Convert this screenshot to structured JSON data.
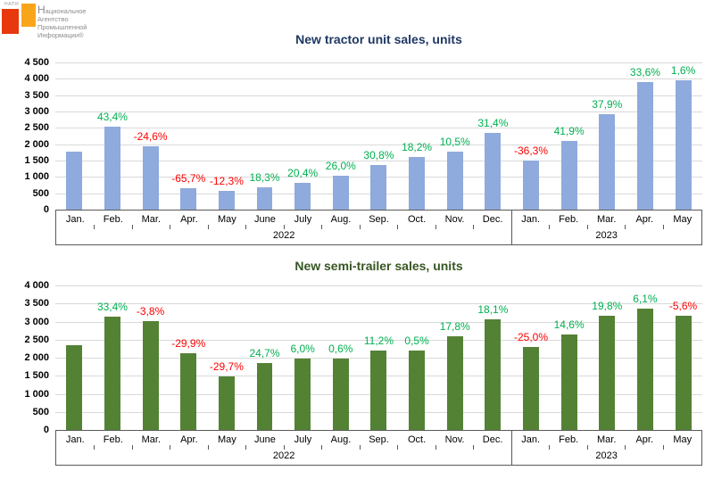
{
  "logo": {
    "acronym": "НАПИ",
    "lines": [
      "Национальное",
      "Агентство",
      "Промышленной",
      "Информации®"
    ],
    "red": "#e8380d",
    "orange": "#f9a51a",
    "text_color": "#8c8c8c"
  },
  "colors": {
    "positive": "#00b050",
    "negative": "#ff0000",
    "gridline": "#d9d9d9",
    "axis_border": "#595959"
  },
  "chart_data": [
    {
      "type": "bar",
      "title": "New tractor unit sales, units",
      "title_color": "#1f3864",
      "bar_color": "#8faadc",
      "grid": true,
      "legend": false,
      "ylim": [
        0,
        4500
      ],
      "ytick_labels": [
        "4 500",
        "4 000",
        "3 500",
        "3 000",
        "2 500",
        "2 000",
        "1 500",
        "1 000",
        "500",
        "0"
      ],
      "categories": [
        "Jan.",
        "Feb.",
        "Mar.",
        "Apr.",
        "May",
        "June",
        "July",
        "Aug.",
        "Sep.",
        "Oct.",
        "Nov.",
        "Dec.",
        "Jan.",
        "Feb.",
        "Mar.",
        "Apr.",
        "May"
      ],
      "values": [
        1780,
        2550,
        1925,
        660,
        580,
        685,
        825,
        1040,
        1360,
        1605,
        1775,
        2335,
        1490,
        2110,
        2910,
        3890,
        3950
      ],
      "pct_labels": [
        "",
        "43,4%",
        "-24,6%",
        "-65,7%",
        "-12,3%",
        "18,3%",
        "20,4%",
        "26,0%",
        "30,8%",
        "18,2%",
        "10,5%",
        "31,4%",
        "-36,3%",
        "41,9%",
        "37,9%",
        "33,6%",
        "1,6%"
      ],
      "groups": [
        {
          "label": "2022",
          "span": 12
        },
        {
          "label": "2023",
          "span": 5
        }
      ]
    },
    {
      "type": "bar",
      "title": "New semi-trailer sales, units",
      "title_color": "#375623",
      "bar_color": "#548235",
      "grid": true,
      "legend": false,
      "ylim": [
        0,
        4000
      ],
      "ytick_labels": [
        "4 000",
        "3 500",
        "3 000",
        "2 500",
        "2 000",
        "1 500",
        "1 000",
        "500",
        "0"
      ],
      "categories": [
        "Jan.",
        "Feb.",
        "Mar.",
        "Apr.",
        "May",
        "June",
        "July",
        "Aug.",
        "Sep.",
        "Oct.",
        "Nov.",
        "Dec.",
        "Jan.",
        "Feb.",
        "Mar.",
        "Apr.",
        "May"
      ],
      "values": [
        2350,
        3135,
        3015,
        2115,
        1490,
        1855,
        1965,
        1975,
        2200,
        2210,
        2600,
        3070,
        2305,
        2640,
        3165,
        3355,
        3170
      ],
      "pct_labels": [
        "",
        "33,4%",
        "-3,8%",
        "-29,9%",
        "-29,7%",
        "24,7%",
        "6,0%",
        "0,6%",
        "11,2%",
        "0,5%",
        "17,8%",
        "18,1%",
        "-25,0%",
        "14,6%",
        "19,8%",
        "6,1%",
        "-5,6%"
      ],
      "groups": [
        {
          "label": "2022",
          "span": 12
        },
        {
          "label": "2023",
          "span": 5
        }
      ]
    }
  ]
}
